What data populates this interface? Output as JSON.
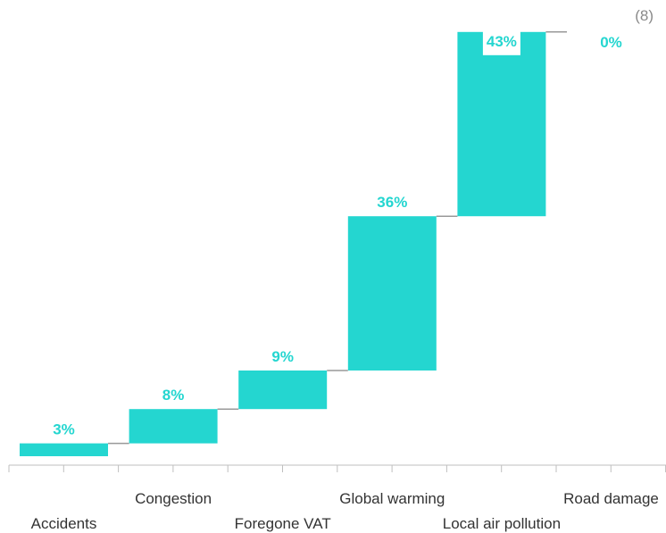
{
  "corner_label": "(8)",
  "chart_data": {
    "type": "waterfall",
    "categories": [
      "Accidents",
      "Congestion",
      "Foregone VAT",
      "Global warming",
      "Local air pollution",
      "Road damage"
    ],
    "values": [
      3,
      8,
      9,
      36,
      43,
      0
    ],
    "data_labels": [
      "3%",
      "8%",
      "9%",
      "36%",
      "43%",
      "0%"
    ],
    "colors": {
      "bar": "#24d6d0",
      "label": "#24d6d0",
      "connector": "#999999",
      "axis": "#bfbfbf",
      "text": "#333333"
    }
  }
}
